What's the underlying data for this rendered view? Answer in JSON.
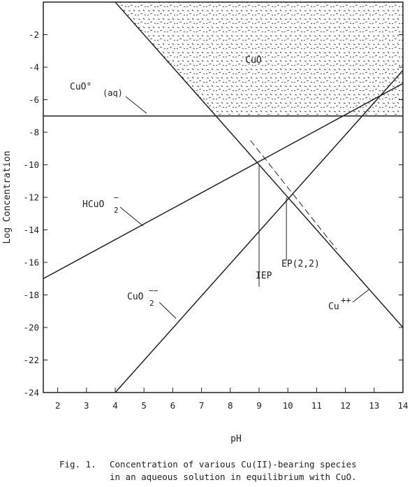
{
  "chart_data": {
    "type": "line",
    "xlabel": "pH",
    "ylabel": "Log Concentration",
    "xlim": [
      1.5,
      14
    ],
    "ylim": [
      -24,
      0
    ],
    "xticks": [
      2,
      3,
      4,
      5,
      6,
      7,
      8,
      9,
      10,
      11,
      12,
      13,
      14
    ],
    "yticks": [
      -2,
      -4,
      -6,
      -8,
      -10,
      -12,
      -14,
      -16,
      -18,
      -20,
      -22,
      -24
    ],
    "series": [
      {
        "name": "Cu++",
        "points": [
          [
            4.0,
            0.0
          ],
          [
            14.0,
            -20.0
          ]
        ],
        "style": "solid"
      },
      {
        "name": "HCuO2-",
        "points": [
          [
            1.5,
            -17.0
          ],
          [
            14.0,
            -5.0
          ]
        ],
        "style": "solid"
      },
      {
        "name": "CuO2--",
        "points": [
          [
            4.0,
            -24.0
          ],
          [
            14.0,
            -4.2
          ]
        ],
        "style": "solid"
      },
      {
        "name": "CuO° (aq)",
        "points": [
          [
            1.5,
            -7.0
          ],
          [
            14.0,
            -7.0
          ]
        ],
        "style": "solid"
      },
      {
        "name": "dashed",
        "points": [
          [
            8.7,
            -8.5
          ],
          [
            11.7,
            -15.2
          ]
        ],
        "style": "dashed"
      }
    ],
    "region": {
      "label": "CuO",
      "bounds": {
        "y_min": -7.0,
        "y_max": 0.0,
        "x_left_line": "Cu++"
      },
      "fill": "stippled"
    },
    "markers": [
      {
        "label": "IEP",
        "x": 9.0,
        "y_top": -10.0,
        "y_bottom": -17.5
      },
      {
        "label": "EP(2,2)",
        "x": 9.95,
        "y_top": -12.0,
        "y_bottom": -15.9
      }
    ],
    "labels": {
      "cuo": "CuO",
      "cuo_aq_main": "CuO°",
      "cuo_aq_sub": "(aq)",
      "hcuo2_main": "HCuO",
      "hcuo2_sub": "2",
      "hcuo2_sup": "−",
      "cuo2_main": "CuO",
      "cuo2_sub": "2",
      "cuo2_sup": "−−",
      "cu_main": "Cu",
      "cu_sup": "++",
      "iep": "IEP",
      "ep": "EP(2,2)"
    }
  },
  "caption": {
    "number": "Fig. 1.",
    "line1": "Concentration of various Cu(II)-bearing species",
    "line2": "in an aqueous solution in equilibrium with CuO."
  }
}
